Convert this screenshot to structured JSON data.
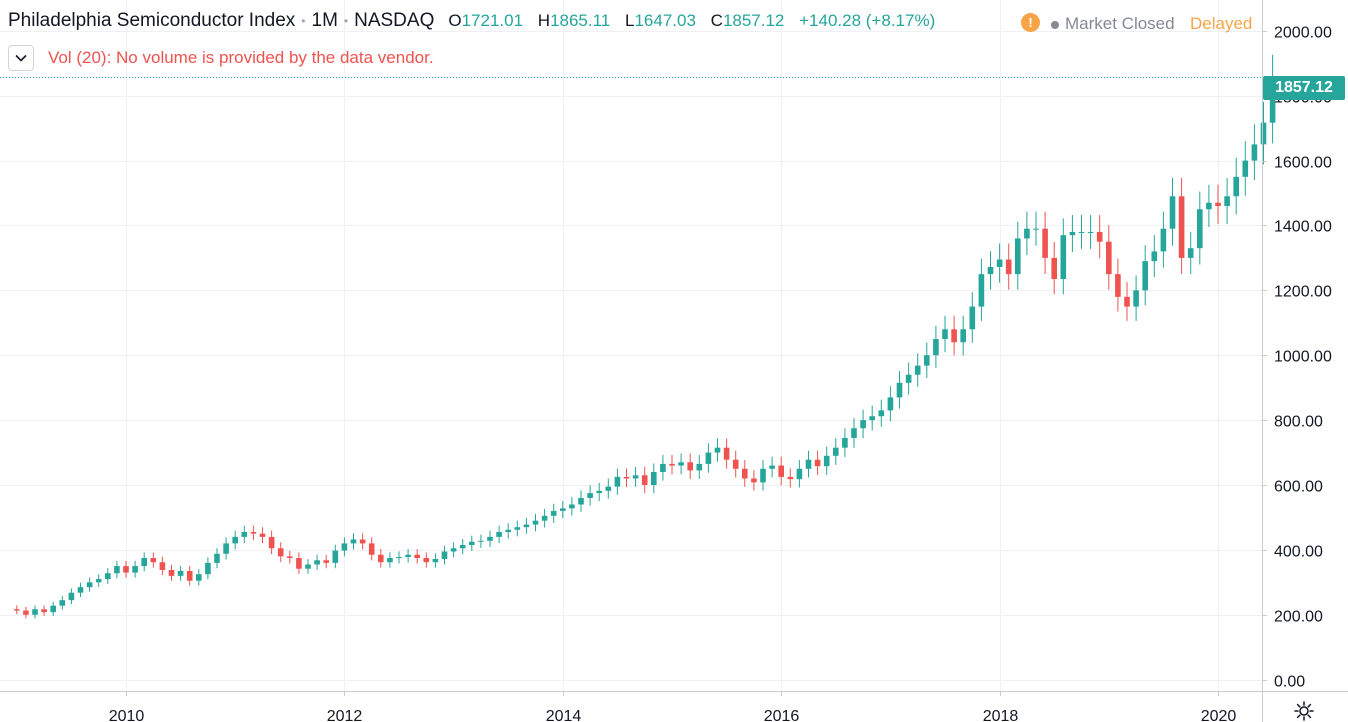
{
  "header": {
    "title": "Philadelphia Semiconductor Index",
    "interval": "1M",
    "exchange": "NASDAQ",
    "ohlc": {
      "o_label": "O",
      "o_value": "1721.01",
      "h_label": "H",
      "h_value": "1865.11",
      "l_label": "L",
      "l_value": "1647.03",
      "c_label": "C",
      "c_value": "1857.12",
      "change": "+140.28 (+8.17%)"
    },
    "market_status": "Market Closed",
    "delayed": "Delayed"
  },
  "volume_indicator": {
    "label": "Vol (20): No volume is provided by the data vendor."
  },
  "last_price_label": "1857.12",
  "colors": {
    "up": "#26a69a",
    "down": "#ef5350",
    "grid": "#eef0f3",
    "axis_text": "#131722",
    "last_price_line": "#26a69a"
  },
  "chart_data": {
    "type": "candlestick",
    "title": "Philadelphia Semiconductor Index",
    "interval": "monthly",
    "xlabel": "",
    "ylabel": "",
    "ylim": [
      -35,
      2095
    ],
    "y_ticks": [
      0,
      200,
      400,
      600,
      800,
      1000,
      1200,
      1400,
      1600,
      1800,
      2000
    ],
    "y_tick_labels": [
      "0.00",
      "200.00",
      "400.00",
      "600.00",
      "800.00",
      "1000.00",
      "1200.00",
      "1400.00",
      "1600.00",
      "1800.00",
      "2000.00"
    ],
    "x_ticks": [
      2010,
      2012,
      2014,
      2016,
      2018,
      2020
    ],
    "x_tick_labels": [
      "2010",
      "2012",
      "2014",
      "2016",
      "2018",
      "2020"
    ],
    "last_price": 1857.12,
    "start": "2009-01",
    "closes": [
      213,
      200,
      217,
      208,
      228,
      245,
      268,
      285,
      300,
      310,
      328,
      350,
      330,
      350,
      375,
      362,
      338,
      320,
      335,
      305,
      325,
      360,
      388,
      420,
      440,
      455,
      450,
      440,
      405,
      380,
      375,
      342,
      355,
      368,
      360,
      398,
      420,
      432,
      420,
      385,
      362,
      375,
      378,
      385,
      375,
      362,
      372,
      395,
      405,
      415,
      425,
      428,
      440,
      455,
      462,
      470,
      478,
      490,
      505,
      520,
      528,
      540,
      560,
      575,
      582,
      595,
      625,
      620,
      630,
      600,
      640,
      665,
      660,
      670,
      645,
      665,
      700,
      715,
      678,
      650,
      620,
      608,
      650,
      660,
      625,
      618,
      650,
      678,
      658,
      690,
      715,
      745,
      775,
      800,
      812,
      830,
      870,
      915,
      940,
      968,
      1000,
      1050,
      1080,
      1040,
      1080,
      1150,
      1250,
      1272,
      1295,
      1250,
      1360,
      1390,
      1390,
      1300,
      1235,
      1370,
      1380,
      1380,
      1380,
      1350,
      1250,
      1180,
      1150,
      1200,
      1290,
      1320,
      1390,
      1490,
      1300,
      1330,
      1450,
      1470,
      1460,
      1490,
      1550,
      1600,
      1650,
      1717,
      1857
    ]
  }
}
